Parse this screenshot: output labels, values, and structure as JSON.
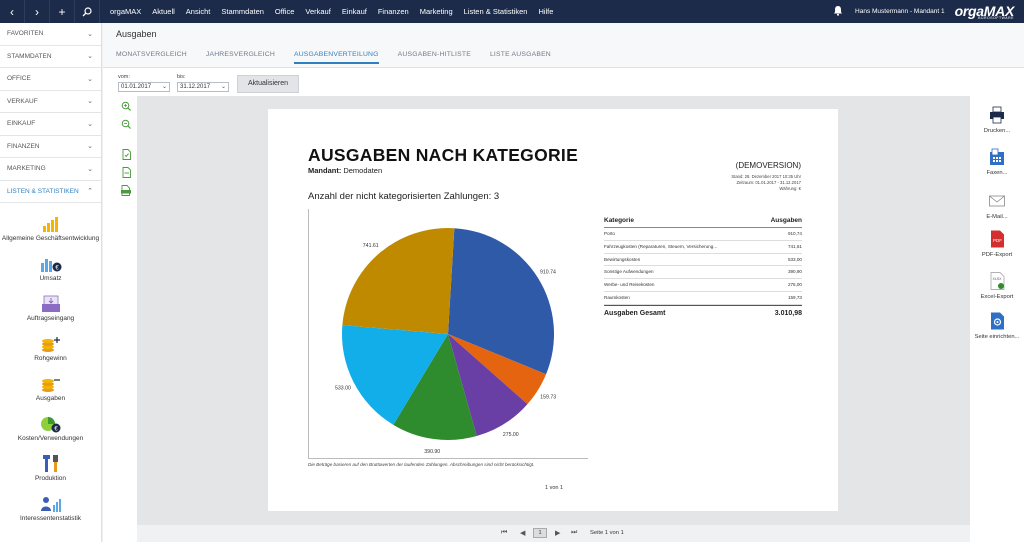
{
  "topbar": {
    "nav_back": "‹",
    "nav_forward": "›",
    "nav_add": "+",
    "menu": [
      "orgaMAX",
      "Aktuell",
      "Ansicht",
      "Stammdaten",
      "Office",
      "Verkauf",
      "Einkauf",
      "Finanzen",
      "Marketing",
      "Listen & Statistiken",
      "Hilfe"
    ],
    "user": "Hans Mustermann - Mandant 1",
    "logo": "orgaMAX",
    "logo_sub": "BÜROSOFTWARE"
  },
  "sidebar": {
    "sections": [
      "FAVORITEN",
      "STAMMDATEN",
      "OFFICE",
      "VERKAUF",
      "EINKAUF",
      "FINANZEN",
      "MARKETING"
    ],
    "active_section": "LISTEN & STATISTIKEN",
    "subitems": [
      "Allgemeine Geschäftsentwicklung",
      "Umsatz",
      "Auftragseingang",
      "Rohgewinn",
      "Ausgaben",
      "Kosten/Verwendungen",
      "Produktion",
      "Interessentenstatistik"
    ]
  },
  "header": {
    "title": "Ausgaben",
    "tabs": [
      "MONATSVERGLEICH",
      "JAHRESVERGLEICH",
      "AUSGABENVERTEILUNG",
      "AUSGABEN-HITLISTE",
      "LISTE AUSGABEN"
    ]
  },
  "filters": {
    "from_label": "vom:",
    "from_value": "01.01.2017",
    "to_label": "bis:",
    "to_value": "31.12.2017",
    "refresh_label": "Aktualisieren"
  },
  "report": {
    "title": "AUSGABEN NACH KATEGORIE",
    "mandant_label": "Mandant:",
    "mandant_value": "Demodaten",
    "demo": "(DEMOVERSION)",
    "stand": "Stand:  28. Dezember 2017 10:35 Uhr",
    "zeitraum": "Zeitraum: 01.01.2017 - 31.12.2017",
    "waehrung": "Währung: €",
    "uncategorized": "Anzahl der nicht kategorisierten Zahlungen: 3",
    "note": "Die Beträge basieren auf den Bruttowerten der laufenden Zahlungen. Abschreibungen sind nicht berücksichtigt.",
    "page_no": "1 von 1",
    "table": {
      "col_category": "Kategorie",
      "col_amount": "Ausgaben",
      "rows": [
        {
          "cat": "Porto",
          "amt": "910,74"
        },
        {
          "cat": "Fahrzeugkosten (Reparaturen, Steuern, Versicherung...",
          "amt": "741,61"
        },
        {
          "cat": "Bewirtungskosten",
          "amt": "533,00"
        },
        {
          "cat": "Sonstige Aufwendungen",
          "amt": "390,90"
        },
        {
          "cat": "Werbe- und Reisekosten",
          "amt": "275,00"
        },
        {
          "cat": "Raumkosten",
          "amt": "159,73"
        }
      ],
      "total_label": "Ausgaben Gesamt",
      "total_value": "3.010,98"
    }
  },
  "chart_data": {
    "type": "pie",
    "title": "",
    "slices": [
      {
        "label": "910.74",
        "value": 910.74,
        "color": "#2f5aa8"
      },
      {
        "label": "159.73",
        "value": 159.73,
        "color": "#e4640f"
      },
      {
        "label": "275.00",
        "value": 275.0,
        "color": "#6a3fa5"
      },
      {
        "label": "390.90",
        "value": 390.9,
        "color": "#2e8b2e"
      },
      {
        "label": "533.00",
        "value": 533.0,
        "color": "#12aee9"
      },
      {
        "label": "741.61",
        "value": 741.61,
        "color": "#c08a00"
      }
    ]
  },
  "right_tools": [
    "Drucken...",
    "Faxen...",
    "E-Mail...",
    "PDF-Export",
    "Excel-Export",
    "Seite einrichten..."
  ],
  "statusbar": {
    "page_input": "1",
    "page_text": "Seite 1 von 1"
  }
}
